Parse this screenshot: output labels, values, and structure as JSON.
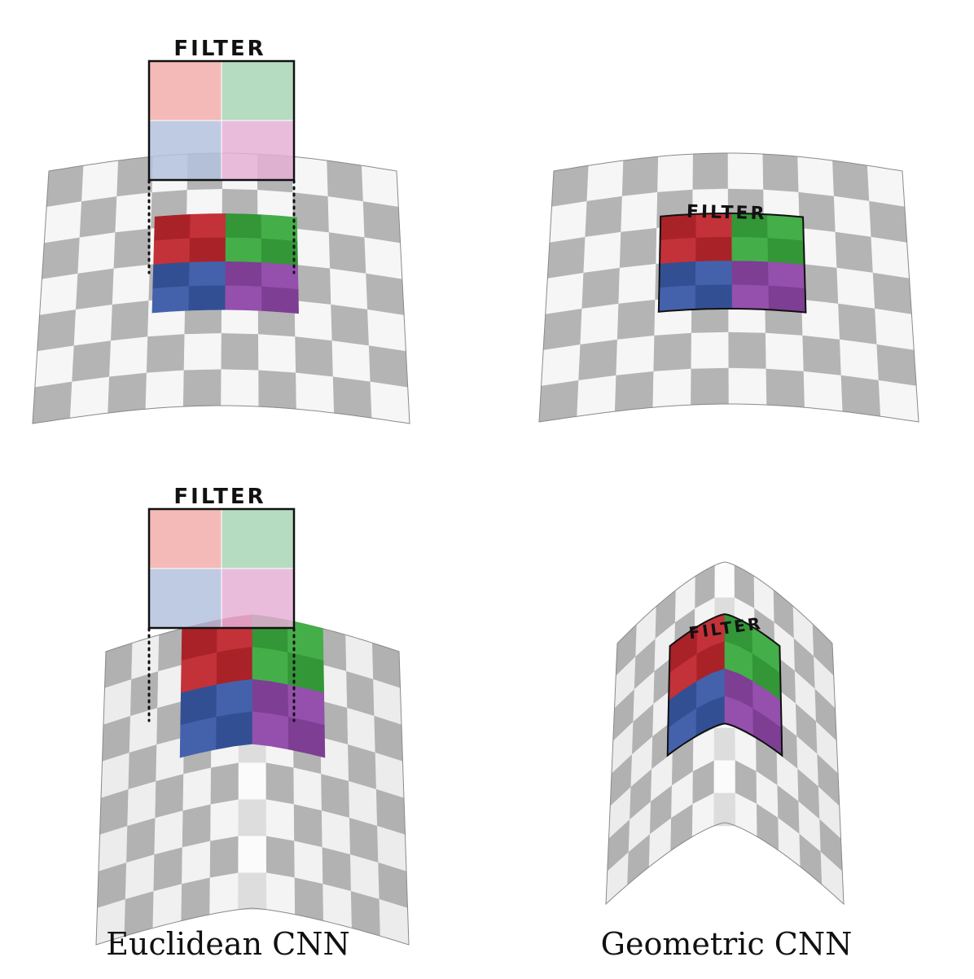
{
  "panels": [
    {
      "id": "euclidean-flat",
      "filter_label": "FILTER"
    },
    {
      "id": "geometric-flat",
      "filter_label": "FILTER"
    },
    {
      "id": "euclidean-curved",
      "filter_label": "FILTER"
    },
    {
      "id": "geometric-curved",
      "filter_label": "FILTER"
    }
  ],
  "captions": {
    "left": "Euclidean CNN",
    "right": "Geometric CNN"
  },
  "colors": {
    "checker_dark": "#b4b4b4",
    "checker_light": "#f6f6f6",
    "red": "#c0272d",
    "green": "#3aaa3f",
    "blue": "#3a5aa8",
    "purple": "#8e47a8",
    "red_light": "#f2aeaa",
    "green_light": "#a8d6b6",
    "blue_light": "#b4c2de",
    "purple_light": "#e6b0d6"
  }
}
